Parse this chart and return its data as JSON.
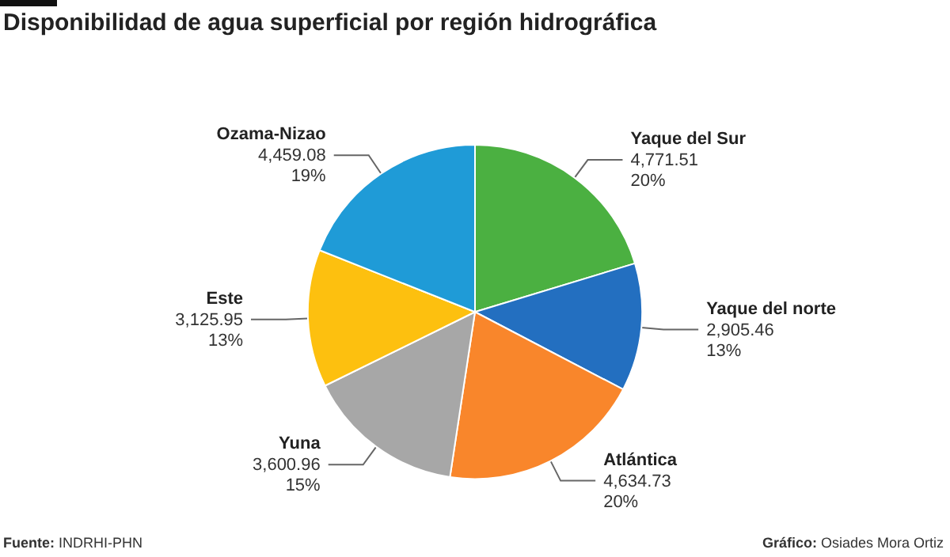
{
  "chart_data": {
    "type": "pie",
    "title": "Disponibilidad de agua superficial por región hidrográfica",
    "categories": [
      "Yaque del Sur",
      "Yaque del norte",
      "Atlántica",
      "Yuna",
      "Este",
      "Ozama-Nizao"
    ],
    "values": [
      4771.51,
      2905.46,
      4634.73,
      3600.96,
      3125.95,
      4459.08
    ],
    "value_labels": [
      "4,771.51\n20%",
      "2,905.46\n13%",
      "4,634.73\n20%",
      "3,600.96\n15%",
      "3,125.95\n13%",
      "4,459.08\n19%"
    ],
    "colors": [
      "#4bb041",
      "#236fc0",
      "#f9862b",
      "#a7a7a7",
      "#fdc00f",
      "#1f9bd7"
    ],
    "annotations": [
      "Fuente: INDRHI-PHN",
      "Gráfico: Osiades Mora Ortiz"
    ],
    "legend": false
  }
}
